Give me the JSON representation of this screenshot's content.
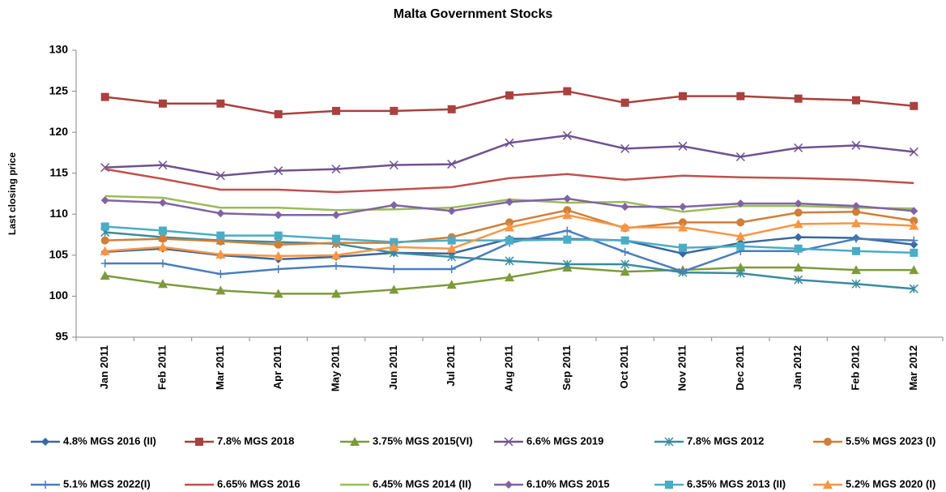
{
  "chart_data": {
    "type": "line",
    "title": "Malta Government Stocks",
    "y_label": "Last closing price",
    "categories": [
      "Jan 2011",
      "Feb 2011",
      "Mar 2011",
      "Apr 2011",
      "May 2011",
      "Jun 2011",
      "Jul 2011",
      "Aug 2011",
      "Sep 2011",
      "Oct 2011",
      "Nov 2011",
      "Dec 2011",
      "Jan 2012",
      "Feb 2012",
      "Mar 2012"
    ],
    "ylim": [
      95,
      130
    ],
    "yticks": [
      95,
      100,
      105,
      110,
      115,
      120,
      125,
      130
    ],
    "grid": false,
    "legend": "bottom",
    "series": [
      {
        "name": "4.8% MGS 2016 (II)",
        "color": "#3A679E",
        "marker": "diamond",
        "values": [
          105.4,
          105.8,
          105,
          104.5,
          104.8,
          105.3,
          105.2,
          107,
          107,
          106.8,
          105.2,
          106.5,
          107.2,
          107.1,
          106.3
        ]
      },
      {
        "name": "7.8% MGS 2018",
        "color": "#A9413E",
        "marker": "square",
        "values": [
          124.3,
          123.5,
          123.5,
          122.2,
          122.6,
          122.6,
          122.8,
          124.5,
          125,
          123.6,
          124.4,
          124.4,
          124.1,
          123.9,
          123.2
        ]
      },
      {
        "name": "3.75% MGS 2015(VI)",
        "color": "#7E9A3C",
        "marker": "triangle",
        "values": [
          102.5,
          101.5,
          100.7,
          100.3,
          100.3,
          100.8,
          101.4,
          102.3,
          103.5,
          103,
          103.2,
          103.5,
          103.5,
          103.2,
          103.2
        ]
      },
      {
        "name": "6.6% MGS 2019",
        "color": "#6E5290",
        "marker": "x",
        "values": [
          115.7,
          116,
          114.7,
          115.3,
          115.5,
          116,
          116.1,
          118.7,
          119.6,
          118,
          118.3,
          117,
          118.1,
          118.4,
          117.6
        ]
      },
      {
        "name": "7.8% MGS 2012",
        "color": "#3A8BA0",
        "marker": "star",
        "values": [
          107.8,
          107.2,
          106.8,
          106.6,
          106.4,
          105.3,
          104.8,
          104.3,
          103.9,
          103.9,
          102.9,
          102.8,
          102,
          101.5,
          100.9
        ]
      },
      {
        "name": "5.5% MGS 2023 (I)",
        "color": "#D07F38",
        "marker": "circle",
        "values": [
          106.8,
          107,
          106.7,
          106.3,
          106.5,
          106.5,
          107.2,
          109,
          110.5,
          108.3,
          109,
          109,
          110.2,
          110.3,
          109.2
        ]
      },
      {
        "name": "5.1% MGS 2022(I)",
        "color": "#4A7EBB",
        "marker": "plus",
        "values": [
          104,
          104,
          102.7,
          103.3,
          103.7,
          103.3,
          103.3,
          106.5,
          108,
          105.4,
          103,
          105.5,
          105.5,
          107,
          106.8
        ]
      },
      {
        "name": "6.65% MGS 2016",
        "color": "#C0504D",
        "marker": "none",
        "values": [
          115.5,
          114.3,
          113,
          113,
          112.7,
          113,
          113.3,
          114.4,
          114.9,
          114.2,
          114.7,
          114.5,
          114.4,
          114.2,
          113.8
        ]
      },
      {
        "name": "6.45% MGS 2014 (II)",
        "color": "#9BBB59",
        "marker": "none",
        "values": [
          112.2,
          112,
          110.8,
          110.8,
          110.5,
          110.6,
          110.8,
          111.8,
          111.4,
          111.5,
          110.3,
          111,
          111,
          110.8,
          110.7
        ]
      },
      {
        "name": "6.10% MGS 2015",
        "color": "#8064A2",
        "marker": "diamond",
        "values": [
          111.7,
          111.4,
          110.1,
          109.9,
          109.9,
          111.1,
          110.4,
          111.5,
          111.9,
          110.9,
          110.9,
          111.3,
          111.3,
          111,
          110.4
        ]
      },
      {
        "name": "6.35% MGS 2013 (II)",
        "color": "#4BACC6",
        "marker": "square",
        "values": [
          108.5,
          108,
          107.4,
          107.4,
          107,
          106.6,
          106.8,
          106.8,
          106.9,
          106.8,
          105.9,
          106.1,
          105.8,
          105.5,
          105.3
        ]
      },
      {
        "name": "5.2% MGS 2020 (I)",
        "color": "#F79646",
        "marker": "triangle",
        "values": [
          105.5,
          106,
          105.1,
          104.9,
          105,
          106,
          105.8,
          108.4,
          109.9,
          108.4,
          108.4,
          107.3,
          108.8,
          108.9,
          108.6
        ]
      }
    ]
  }
}
